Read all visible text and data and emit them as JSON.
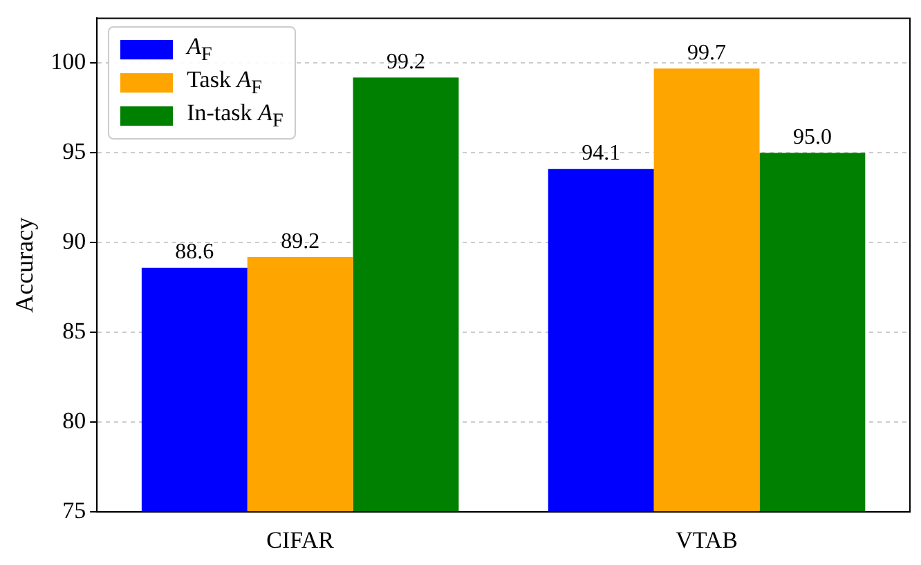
{
  "chart_data": {
    "type": "bar",
    "ylabel": "Accuracy",
    "categories": [
      "CIFAR",
      "VTAB"
    ],
    "series": [
      {
        "name": "A$_{F}$",
        "color": "#0000ff",
        "values": [
          88.6,
          94.1
        ],
        "value_labels": [
          "88.6",
          "94.1"
        ]
      },
      {
        "name": "Task A$_{F}$",
        "color": "#ffa500",
        "values": [
          89.2,
          99.7
        ],
        "value_labels": [
          "89.2",
          "99.7"
        ]
      },
      {
        "name": "In-task A$_{F}$",
        "color": "#008000",
        "values": [
          99.2,
          95.0
        ],
        "value_labels": [
          "99.2",
          "95.0"
        ]
      }
    ],
    "ylim": [
      75,
      102.5
    ],
    "yticks": [
      75,
      80,
      85,
      90,
      95,
      100
    ],
    "grid": "y",
    "legend": "top left"
  }
}
